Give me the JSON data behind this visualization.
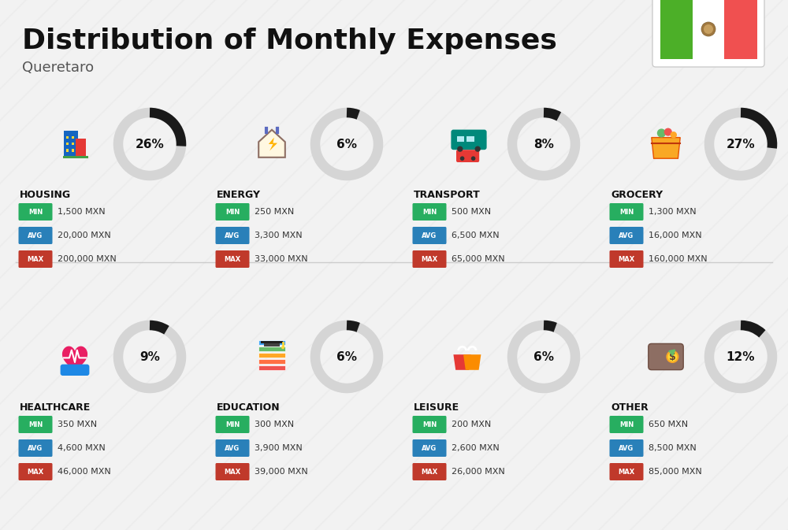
{
  "title": "Distribution of Monthly Expenses",
  "subtitle": "Queretaro",
  "background_color": "#f2f2f2",
  "categories": [
    {
      "name": "HOUSING",
      "pct": 26,
      "min": "1,500 MXN",
      "avg": "20,000 MXN",
      "max": "200,000 MXN",
      "row": 0,
      "col": 0
    },
    {
      "name": "ENERGY",
      "pct": 6,
      "min": "250 MXN",
      "avg": "3,300 MXN",
      "max": "33,000 MXN",
      "row": 0,
      "col": 1
    },
    {
      "name": "TRANSPORT",
      "pct": 8,
      "min": "500 MXN",
      "avg": "6,500 MXN",
      "max": "65,000 MXN",
      "row": 0,
      "col": 2
    },
    {
      "name": "GROCERY",
      "pct": 27,
      "min": "1,300 MXN",
      "avg": "16,000 MXN",
      "max": "160,000 MXN",
      "row": 0,
      "col": 3
    },
    {
      "name": "HEALTHCARE",
      "pct": 9,
      "min": "350 MXN",
      "avg": "4,600 MXN",
      "max": "46,000 MXN",
      "row": 1,
      "col": 0
    },
    {
      "name": "EDUCATION",
      "pct": 6,
      "min": "300 MXN",
      "avg": "3,900 MXN",
      "max": "39,000 MXN",
      "row": 1,
      "col": 1
    },
    {
      "name": "LEISURE",
      "pct": 6,
      "min": "200 MXN",
      "avg": "2,600 MXN",
      "max": "26,000 MXN",
      "row": 1,
      "col": 2
    },
    {
      "name": "OTHER",
      "pct": 12,
      "min": "650 MXN",
      "avg": "8,500 MXN",
      "max": "85,000 MXN",
      "row": 1,
      "col": 3
    }
  ],
  "color_min": "#27ae60",
  "color_avg": "#2980b9",
  "color_max": "#c0392b",
  "ring_bg": "#d5d5d5",
  "ring_fg": "#1a1a1a",
  "stripe_color": "#eaeaea",
  "divider_color": "#cccccc",
  "flag_green": "#4caf28",
  "flag_white": "#ffffff",
  "flag_red": "#f05050",
  "title_fontsize": 26,
  "subtitle_fontsize": 13,
  "name_fontsize": 9,
  "value_fontsize": 8,
  "badge_fontsize": 6,
  "pct_fontsize": 11
}
